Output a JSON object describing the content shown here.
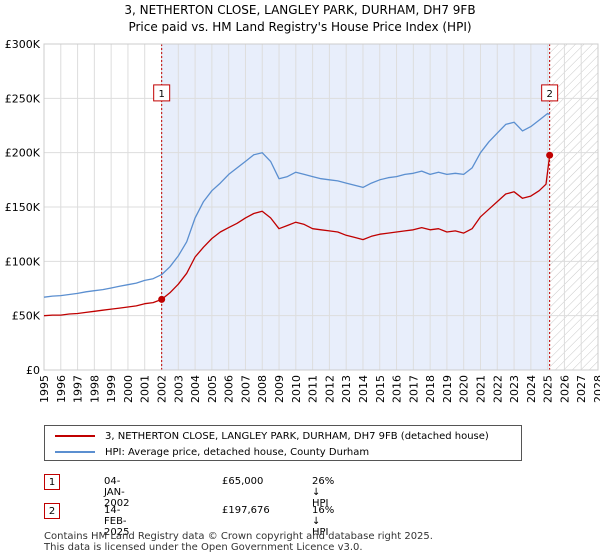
{
  "chart_data": {
    "type": "line",
    "title": "3, NETHERTON CLOSE, LANGLEY PARK, DURHAM, DH7 9FB",
    "subtitle": "Price paid vs. HM Land Registry's House Price Index (HPI)",
    "xlabel": "",
    "ylabel": "",
    "xlim": [
      1995,
      2028
    ],
    "ylim": [
      0,
      300000
    ],
    "yticks": [
      0,
      50000,
      100000,
      150000,
      200000,
      250000,
      300000
    ],
    "ytick_labels": [
      "£0",
      "£50K",
      "£100K",
      "£150K",
      "£200K",
      "£250K",
      "£300K"
    ],
    "xticks": [
      1995,
      1996,
      1997,
      1998,
      1999,
      2000,
      2001,
      2002,
      2003,
      2004,
      2005,
      2006,
      2007,
      2008,
      2009,
      2010,
      2011,
      2012,
      2013,
      2014,
      2015,
      2016,
      2017,
      2018,
      2019,
      2020,
      2021,
      2022,
      2023,
      2024,
      2025,
      2026,
      2027,
      2028
    ],
    "grid": true,
    "shaded_period": [
      2002.01,
      2025.12
    ],
    "future_hatch_from": 2025.12,
    "series": [
      {
        "name": "3, NETHERTON CLOSE, LANGLEY PARK, DURHAM, DH7 9FB (detached house)",
        "color": "#c00000",
        "x": [
          1995.0,
          1995.5,
          1996.0,
          1996.5,
          1997.0,
          1997.5,
          1998.0,
          1998.5,
          1999.0,
          1999.5,
          2000.0,
          2000.5,
          2001.0,
          2001.5,
          2002.01,
          2002.5,
          2003.0,
          2003.5,
          2004.0,
          2004.5,
          2005.0,
          2005.5,
          2006.0,
          2006.5,
          2007.0,
          2007.5,
          2008.0,
          2008.5,
          2009.0,
          2009.5,
          2010.0,
          2010.5,
          2011.0,
          2011.5,
          2012.0,
          2012.5,
          2013.0,
          2013.5,
          2014.0,
          2014.5,
          2015.0,
          2015.5,
          2016.0,
          2016.5,
          2017.0,
          2017.5,
          2018.0,
          2018.5,
          2019.0,
          2019.5,
          2020.0,
          2020.5,
          2021.0,
          2021.5,
          2022.0,
          2022.5,
          2023.0,
          2023.5,
          2024.0,
          2024.5,
          2024.9,
          2025.12
        ],
        "y": [
          50000,
          50500,
          50500,
          51500,
          52000,
          53000,
          54000,
          55000,
          56000,
          57000,
          58000,
          59000,
          61000,
          62000,
          65000,
          71000,
          79000,
          89000,
          104000,
          113000,
          121000,
          127000,
          131000,
          135000,
          140000,
          144000,
          146000,
          140000,
          130000,
          133000,
          136000,
          134000,
          130000,
          129000,
          128000,
          127000,
          124000,
          122000,
          120000,
          123000,
          125000,
          126000,
          127000,
          128000,
          129000,
          131000,
          129000,
          130000,
          127000,
          128000,
          126000,
          130000,
          141000,
          148000,
          155000,
          162000,
          164000,
          158000,
          160000,
          165000,
          171000,
          197676
        ]
      },
      {
        "name": "HPI: Average price, detached house, County Durham",
        "color": "#5b8fd0",
        "x": [
          1995.0,
          1995.5,
          1996.0,
          1996.5,
          1997.0,
          1997.5,
          1998.0,
          1998.5,
          1999.0,
          1999.5,
          2000.0,
          2000.5,
          2001.0,
          2001.5,
          2002.01,
          2002.5,
          2003.0,
          2003.5,
          2004.0,
          2004.5,
          2005.0,
          2005.5,
          2006.0,
          2006.5,
          2007.0,
          2007.5,
          2008.0,
          2008.5,
          2009.0,
          2009.5,
          2010.0,
          2010.5,
          2011.0,
          2011.5,
          2012.0,
          2012.5,
          2013.0,
          2013.5,
          2014.0,
          2014.5,
          2015.0,
          2015.5,
          2016.0,
          2016.5,
          2017.0,
          2017.5,
          2018.0,
          2018.5,
          2019.0,
          2019.5,
          2020.0,
          2020.5,
          2021.0,
          2021.5,
          2022.0,
          2022.5,
          2023.0,
          2023.5,
          2024.0,
          2024.5,
          2025.0,
          2025.12
        ],
        "y": [
          67000,
          68000,
          68500,
          69500,
          70500,
          72000,
          73000,
          74000,
          75500,
          77000,
          78500,
          80000,
          82500,
          84000,
          87800,
          95000,
          105000,
          118000,
          140000,
          155000,
          165000,
          172000,
          180000,
          186000,
          192000,
          198000,
          200000,
          192000,
          176000,
          178000,
          182000,
          180000,
          178000,
          176000,
          175000,
          174000,
          172000,
          170000,
          168000,
          172000,
          175000,
          177000,
          178000,
          180000,
          181000,
          183000,
          180000,
          182000,
          180000,
          181000,
          180000,
          186000,
          200000,
          210000,
          218000,
          226000,
          228000,
          220000,
          224000,
          230000,
          236000,
          235000
        ]
      }
    ],
    "annotations": [
      {
        "label": "1",
        "x": 2002.01,
        "y": 65000,
        "box_y": 255000
      },
      {
        "label": "2",
        "x": 2025.12,
        "y": 197676,
        "box_y": 255000
      }
    ]
  },
  "legend": {
    "items": [
      {
        "label": "3, NETHERTON CLOSE, LANGLEY PARK, DURHAM, DH7 9FB (detached house)",
        "color": "#c00000"
      },
      {
        "label": "HPI: Average price, detached house, County Durham",
        "color": "#5b8fd0"
      }
    ]
  },
  "sales": [
    {
      "badge": "1",
      "date": "04-JAN-2002",
      "price": "£65,000",
      "hpi": "26% ↓ HPI"
    },
    {
      "badge": "2",
      "date": "14-FEB-2025",
      "price": "£197,676",
      "hpi": "16% ↓ HPI"
    }
  ],
  "footer": {
    "line1": "Contains HM Land Registry data © Crown copyright and database right 2025.",
    "line2": "This data is licensed under the Open Government Licence v3.0."
  }
}
